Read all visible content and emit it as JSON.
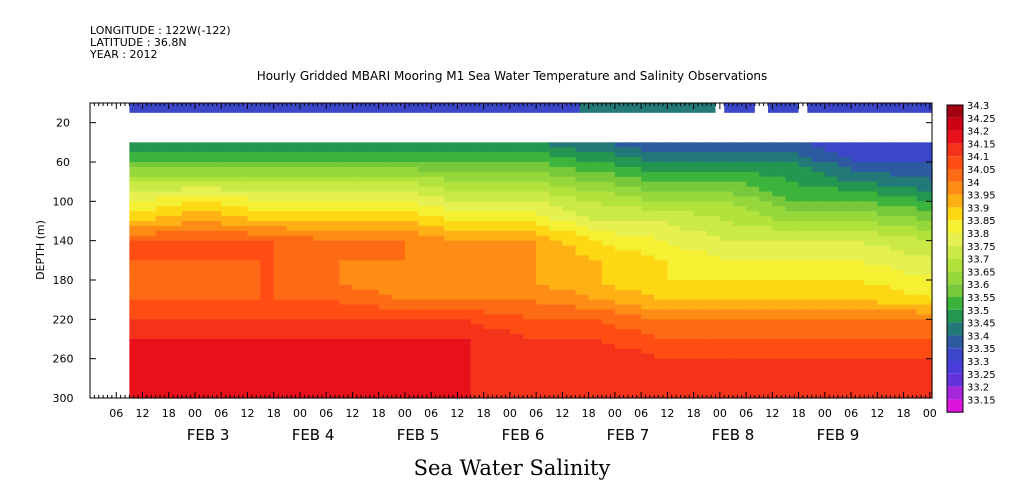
{
  "header": {
    "longitude": "LONGITUDE : 122W(-122)",
    "latitude": "LATITUDE : 36.8N",
    "year": "YEAR : 2012"
  },
  "chart_data": {
    "type": "heatmap",
    "title": "Hourly Gridded MBARI Mooring M1 Sea Water Temperature and Salinity Observations",
    "xlabel": "Sea Water Salinity",
    "ylabel": "DEPTH (m)",
    "ylim": [
      300,
      0
    ],
    "yticks": [
      20,
      60,
      100,
      140,
      180,
      220,
      260,
      300
    ],
    "xlim": [
      "2012-02-02T00:00",
      "2012-02-10T00:30"
    ],
    "x_hour_ticks": [
      "06",
      "12",
      "18",
      "00",
      "06",
      "12",
      "18",
      "00",
      "06",
      "12",
      "18",
      "00",
      "06",
      "12",
      "18",
      "00",
      "06",
      "12",
      "18",
      "00",
      "06",
      "12",
      "18",
      "00",
      "06",
      "12",
      "18",
      "00",
      "06",
      "12",
      "18",
      "00"
    ],
    "day_labels": [
      "FEB 3",
      "FEB 4",
      "FEB 5",
      "FEB 6",
      "FEB 7",
      "FEB 8",
      "FEB 9"
    ],
    "colorbar": {
      "levels": [
        34.3,
        34.25,
        34.2,
        34.15,
        34.1,
        34.05,
        34,
        33.95,
        33.9,
        33.85,
        33.8,
        33.75,
        33.7,
        33.65,
        33.6,
        33.55,
        33.5,
        33.45,
        33.4,
        33.35,
        33.3,
        33.25,
        33.2,
        33.15
      ],
      "colors": [
        "#a30012",
        "#cc0012",
        "#e8101a",
        "#f5321a",
        "#ff4d14",
        "#ff6a14",
        "#ff8c14",
        "#ffb014",
        "#ffd814",
        "#f5f032",
        "#e6f050",
        "#ccea46",
        "#b2e23c",
        "#96d83c",
        "#78c83c",
        "#3cb43c",
        "#239650",
        "#237878",
        "#2d5aa0",
        "#3c46c8",
        "#4b3cdc",
        "#6432dc",
        "#a528dc",
        "#dc14dc"
      ]
    },
    "surface_salinity": 33.35,
    "surface_band_segments": [
      [
        "2012-02-02T09:00",
        "2012-02-06T16:00",
        33.35
      ],
      [
        "2012-02-06T16:00",
        "2012-02-07T23:00",
        33.45
      ],
      [
        "2012-02-08T01:00",
        "2012-02-08T08:00",
        33.35
      ],
      [
        "2012-02-08T11:00",
        "2012-02-08T18:00",
        33.35
      ],
      [
        "2012-02-08T20:00",
        "2012-02-10T00:30",
        33.35
      ]
    ],
    "profile_depths": [
      40,
      60,
      80,
      100,
      120,
      140,
      160,
      180,
      200,
      220,
      240,
      260,
      280,
      300
    ],
    "profiles": [
      {
        "time": "2012-02-02T09:00",
        "salinity": [
          33.5,
          33.6,
          33.75,
          33.85,
          33.95,
          34.1,
          34.1,
          34.05,
          34.1,
          34.15,
          34.2,
          34.25,
          34.2,
          34.2
        ]
      },
      {
        "time": "2012-02-03T00:00",
        "salinity": [
          33.5,
          33.6,
          33.75,
          33.9,
          34.0,
          34.1,
          34.1,
          34.05,
          34.1,
          34.15,
          34.2,
          34.25,
          34.2,
          34.2
        ]
      },
      {
        "time": "2012-02-03T15:00",
        "salinity": [
          33.5,
          33.6,
          33.75,
          33.85,
          33.95,
          34.1,
          34.1,
          34.1,
          34.1,
          34.15,
          34.2,
          34.25,
          34.2,
          34.2
        ]
      },
      {
        "time": "2012-02-04T06:00",
        "salinity": [
          33.5,
          33.6,
          33.75,
          33.85,
          33.95,
          34.05,
          34.05,
          34.05,
          34.1,
          34.15,
          34.2,
          34.25,
          34.2,
          34.2
        ]
      },
      {
        "time": "2012-02-04T21:00",
        "salinity": [
          33.5,
          33.6,
          33.75,
          33.85,
          33.95,
          34.05,
          34.05,
          34.0,
          34.05,
          34.15,
          34.2,
          34.2,
          34.2,
          34.2
        ]
      },
      {
        "time": "2012-02-05T12:00",
        "salinity": [
          33.5,
          33.6,
          33.7,
          33.8,
          33.9,
          34.0,
          34.05,
          34.0,
          34.05,
          34.15,
          34.2,
          34.2,
          34.2,
          34.2
        ]
      },
      {
        "time": "2012-02-06T03:00",
        "salinity": [
          33.5,
          33.6,
          33.7,
          33.8,
          33.9,
          34.0,
          34.0,
          34.0,
          34.05,
          34.1,
          34.15,
          34.2,
          34.15,
          34.15
        ]
      },
      {
        "time": "2012-02-06T18:00",
        "salinity": [
          33.45,
          33.55,
          33.65,
          33.75,
          33.8,
          33.9,
          33.95,
          33.95,
          34.0,
          34.1,
          34.15,
          34.2,
          34.15,
          34.15
        ]
      },
      {
        "time": "2012-02-07T09:00",
        "salinity": [
          33.4,
          33.5,
          33.6,
          33.7,
          33.8,
          33.85,
          33.9,
          33.9,
          33.95,
          34.05,
          34.1,
          34.15,
          34.15,
          34.15
        ]
      },
      {
        "time": "2012-02-08T00:00",
        "salinity": [
          33.4,
          33.5,
          33.6,
          33.7,
          33.75,
          33.8,
          33.85,
          33.9,
          33.95,
          34.05,
          34.1,
          34.15,
          34.15,
          34.15
        ]
      },
      {
        "time": "2012-02-08T15:00",
        "salinity": [
          33.4,
          33.5,
          33.55,
          33.6,
          33.7,
          33.8,
          33.85,
          33.9,
          33.95,
          34.05,
          34.1,
          34.15,
          34.15,
          34.15
        ]
      },
      {
        "time": "2012-02-09T06:00",
        "salinity": [
          33.35,
          33.4,
          33.5,
          33.6,
          33.7,
          33.8,
          33.85,
          33.9,
          33.95,
          34.05,
          34.1,
          34.15,
          34.15,
          34.15
        ]
      },
      {
        "time": "2012-02-10T00:30",
        "salinity": [
          33.35,
          33.4,
          33.45,
          33.55,
          33.65,
          33.75,
          33.8,
          33.85,
          33.9,
          34.05,
          34.1,
          34.15,
          34.15,
          34.15
        ]
      }
    ],
    "grid": false
  }
}
